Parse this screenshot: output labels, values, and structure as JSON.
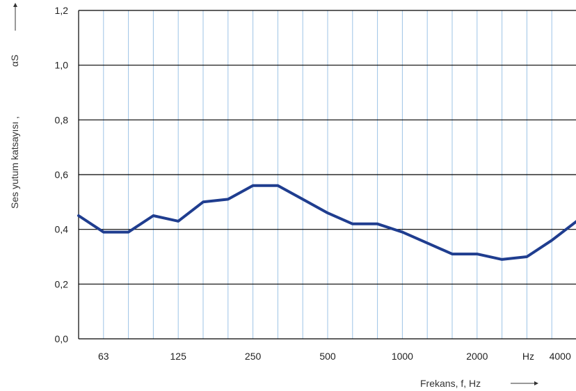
{
  "chart_data": {
    "type": "line",
    "title": "",
    "xlabel": "Frekans, f, Hz",
    "ylabel": "Ses yutum katsayısı ,",
    "ylabel_symbol": "αS",
    "x_tick_labels": [
      "63",
      "125",
      "250",
      "500",
      "1000",
      "2000",
      "Hz",
      "4000"
    ],
    "x_unit_label": "Hz",
    "y_tick_labels": [
      "0,0",
      "0,2",
      "0,4",
      "0,6",
      "0,8",
      "1,0",
      "1,2"
    ],
    "ylim": [
      0,
      1.2
    ],
    "grid": true,
    "series": [
      {
        "color": "#1f3d8f",
        "x": [
          "50",
          "63",
          "80",
          "100",
          "125",
          "160",
          "200",
          "250",
          "315",
          "400",
          "500",
          "630",
          "800",
          "1000",
          "1250",
          "1600",
          "2000",
          "2500",
          "3150",
          "4000",
          "5000"
        ],
        "values": [
          0.45,
          0.39,
          0.39,
          0.45,
          0.43,
          0.5,
          0.51,
          0.56,
          0.56,
          0.51,
          0.46,
          0.42,
          0.42,
          0.39,
          0.35,
          0.31,
          0.31,
          0.29,
          0.3,
          0.36,
          0.43
        ]
      }
    ],
    "colors": {
      "line": "#1f3d8f",
      "minor_grid": "#9cc3e6",
      "major_grid": "#000000"
    }
  }
}
